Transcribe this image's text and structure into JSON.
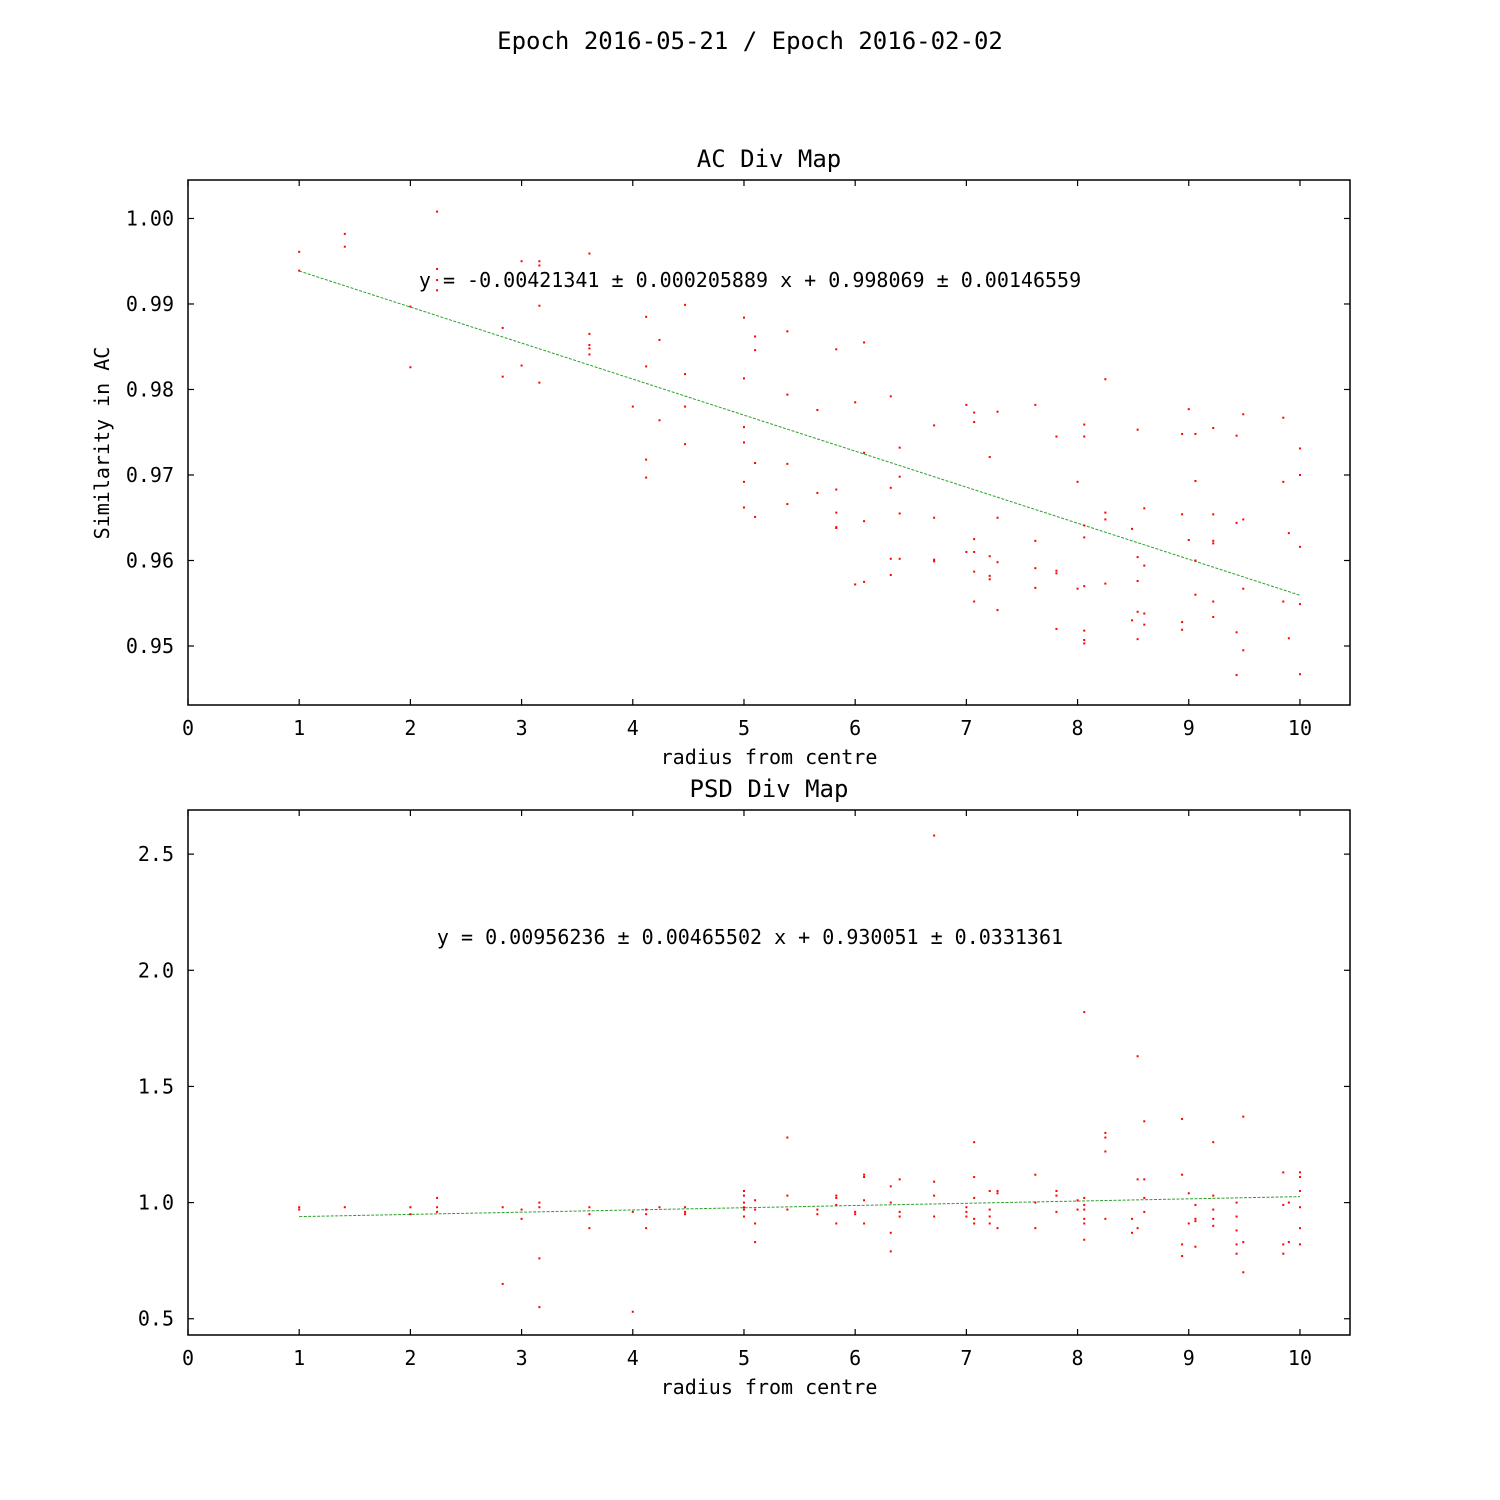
{
  "figure": {
    "suptitle": "Epoch 2016-05-21 / Epoch 2016-02-02"
  },
  "colors": {
    "points": "#ff0000",
    "fit": "#2ca02c",
    "axes": "#000000"
  },
  "chart_data": [
    {
      "type": "scatter",
      "title": "AC Div Map",
      "xlabel": "radius from centre",
      "ylabel": "Similarity in AC",
      "xlim": [
        0,
        10.45
      ],
      "ylim": [
        0.9431,
        1.0045
      ],
      "xticks": [
        0,
        1,
        2,
        3,
        4,
        5,
        6,
        7,
        8,
        9,
        10
      ],
      "yticks": [
        0.95,
        0.96,
        0.97,
        0.98,
        0.99,
        1.0
      ],
      "ytick_labels": [
        "0.95",
        "0.96",
        "0.97",
        "0.98",
        "0.99",
        "1.00"
      ],
      "grid": false,
      "fit": {
        "equation": "y = -0.00421341 ± 0.000205889 x + 0.998069 ± 0.00146559",
        "slope": -0.00421341,
        "intercept": 0.998069,
        "x_range": [
          1,
          10
        ],
        "style": "dashed"
      },
      "x": [
        1,
        1,
        1.41,
        1.41,
        2,
        2,
        2.24,
        2.24,
        2.24,
        2.24,
        2.83,
        2.83,
        3,
        3,
        3.16,
        3.16,
        3.16,
        3.16,
        3.61,
        3.61,
        3.61,
        3.61,
        3.61,
        4,
        4.12,
        4.12,
        4.12,
        4.12,
        4.24,
        4.24,
        4.47,
        4.47,
        4.47,
        4.47,
        5,
        5,
        5,
        5,
        5,
        5,
        5.1,
        5.1,
        5.1,
        5.1,
        5.39,
        5.39,
        5.39,
        5.39,
        5.66,
        5.66,
        5.83,
        5.83,
        5.83,
        5.83,
        5.83,
        6,
        6,
        6.08,
        6.08,
        6.08,
        6.08,
        6.32,
        6.32,
        6.32,
        6.32,
        6.4,
        6.4,
        6.4,
        6.4,
        6.71,
        6.71,
        6.71,
        6.71,
        7,
        7,
        7.07,
        7.07,
        7.07,
        7.07,
        7.07,
        7.07,
        7.21,
        7.21,
        7.21,
        7.21,
        7.28,
        7.28,
        7.28,
        7.28,
        7.62,
        7.62,
        7.62,
        7.62,
        7.81,
        7.81,
        7.81,
        7.81,
        8,
        8,
        8.06,
        8.06,
        8.06,
        8.06,
        8.06,
        8.06,
        8.06,
        8.06,
        8.25,
        8.25,
        8.25,
        8.25,
        8.49,
        8.49,
        8.54,
        8.54,
        8.54,
        8.54,
        8.54,
        8.6,
        8.6,
        8.6,
        8.6,
        8.94,
        8.94,
        8.94,
        8.94,
        9,
        9,
        9.06,
        9.06,
        9.06,
        9.06,
        9.22,
        9.22,
        9.22,
        9.22,
        9.22,
        9.22,
        9.43,
        9.43,
        9.43,
        9.43,
        9.49,
        9.49,
        9.49,
        9.49,
        9.85,
        9.85,
        9.85,
        9.9,
        9.9,
        10,
        10,
        10,
        10,
        10
      ],
      "y": [
        0.9961,
        0.9939,
        0.9982,
        0.9967,
        0.9897,
        0.9826,
        1.0008,
        0.9941,
        0.9928,
        0.9916,
        0.9872,
        0.9815,
        0.995,
        0.9828,
        0.995,
        0.9945,
        0.9898,
        0.9808,
        0.9959,
        0.9865,
        0.9852,
        0.9848,
        0.9841,
        0.978,
        0.9885,
        0.9827,
        0.9718,
        0.9697,
        0.9858,
        0.9764,
        0.9899,
        0.9818,
        0.978,
        0.9736,
        0.9884,
        0.9813,
        0.9756,
        0.9738,
        0.9692,
        0.9662,
        0.9862,
        0.9846,
        0.9714,
        0.9651,
        0.9868,
        0.9794,
        0.9713,
        0.9666,
        0.9776,
        0.9679,
        0.9847,
        0.9683,
        0.9656,
        0.9638,
        0.9639,
        0.9785,
        0.9572,
        0.9855,
        0.9726,
        0.9646,
        0.9575,
        0.9792,
        0.9685,
        0.9602,
        0.9583,
        0.9732,
        0.9698,
        0.9655,
        0.9602,
        0.9758,
        0.965,
        0.9601,
        0.9599,
        0.9782,
        0.961,
        0.9773,
        0.9762,
        0.9625,
        0.961,
        0.9587,
        0.9552,
        0.9721,
        0.9605,
        0.9582,
        0.9578,
        0.9774,
        0.965,
        0.9598,
        0.9542,
        0.9782,
        0.9623,
        0.9591,
        0.9568,
        0.9745,
        0.9588,
        0.9585,
        0.952,
        0.9692,
        0.9567,
        0.9759,
        0.9745,
        0.9641,
        0.9627,
        0.957,
        0.9518,
        0.9507,
        0.9503,
        0.9812,
        0.9656,
        0.9648,
        0.9573,
        0.9637,
        0.953,
        0.9753,
        0.9604,
        0.9576,
        0.954,
        0.9508,
        0.9661,
        0.9594,
        0.9538,
        0.9525,
        0.9748,
        0.9654,
        0.9528,
        0.9519,
        0.9777,
        0.9624,
        0.9748,
        0.9693,
        0.96,
        0.956,
        0.9755,
        0.9654,
        0.9623,
        0.962,
        0.9552,
        0.9534,
        0.9746,
        0.9644,
        0.9516,
        0.9466,
        0.9771,
        0.9648,
        0.9567,
        0.9495,
        0.9767,
        0.9692,
        0.9552,
        0.9632,
        0.9509,
        0.9731,
        0.97,
        0.9616,
        0.9549,
        0.9467
      ]
    },
    {
      "type": "scatter",
      "title": "PSD Div Map",
      "xlabel": "radius from centre",
      "ylabel": "",
      "xlim": [
        0,
        10.45
      ],
      "ylim": [
        0.43,
        2.69
      ],
      "xticks": [
        0,
        1,
        2,
        3,
        4,
        5,
        6,
        7,
        8,
        9,
        10
      ],
      "yticks": [
        0.5,
        1.0,
        1.5,
        2.0,
        2.5
      ],
      "ytick_labels": [
        "0.5",
        "1.0",
        "1.5",
        "2.0",
        "2.5"
      ],
      "grid": false,
      "fit": {
        "equation": "y = 0.00956236 ± 0.00465502 x + 0.930051 ± 0.0331361",
        "slope": 0.00956236,
        "intercept": 0.930051,
        "x_range": [
          1,
          10
        ],
        "style": "dashed"
      },
      "x": [
        1,
        1,
        1.41,
        2,
        2,
        2.24,
        2.24,
        2.24,
        2.83,
        2.83,
        3,
        3,
        3.16,
        3.16,
        3.16,
        3.16,
        3.61,
        3.61,
        3.61,
        4,
        4,
        4.12,
        4.12,
        4.12,
        4.24,
        4.47,
        4.47,
        4.47,
        5,
        5,
        5,
        5,
        5,
        5,
        5.1,
        5.1,
        5.1,
        5.1,
        5.39,
        5.39,
        5.39,
        5.66,
        5.66,
        5.83,
        5.83,
        5.83,
        5.83,
        6,
        6,
        6.08,
        6.08,
        6.08,
        6.08,
        6.32,
        6.32,
        6.32,
        6.32,
        6.4,
        6.4,
        6.4,
        6.71,
        6.71,
        6.71,
        6.71,
        7,
        7,
        7,
        7.07,
        7.07,
        7.07,
        7.07,
        7.07,
        7.21,
        7.21,
        7.21,
        7.21,
        7.28,
        7.28,
        7.28,
        7.62,
        7.62,
        7.62,
        7.81,
        7.81,
        7.81,
        8,
        8,
        8.06,
        8.06,
        8.06,
        8.06,
        8.06,
        8.06,
        8.06,
        8.25,
        8.25,
        8.25,
        8.25,
        8.49,
        8.49,
        8.54,
        8.54,
        8.54,
        8.6,
        8.6,
        8.6,
        8.6,
        8.94,
        8.94,
        8.94,
        8.94,
        9,
        9,
        9.06,
        9.06,
        9.06,
        9.06,
        9.22,
        9.22,
        9.22,
        9.22,
        9.22,
        9.43,
        9.43,
        9.43,
        9.43,
        9.43,
        9.49,
        9.49,
        9.49,
        9.85,
        9.85,
        9.85,
        9.85,
        9.9,
        9.9,
        10,
        10,
        10,
        10,
        10,
        10
      ],
      "y": [
        0.98,
        0.97,
        0.98,
        0.98,
        0.95,
        1.02,
        0.98,
        0.96,
        0.98,
        0.65,
        0.97,
        0.93,
        1.0,
        0.98,
        0.76,
        0.55,
        0.98,
        0.95,
        0.89,
        0.96,
        0.53,
        0.97,
        0.95,
        0.89,
        0.98,
        0.98,
        0.96,
        0.95,
        1.05,
        1.03,
        1.0,
        0.98,
        0.97,
        0.94,
        1.01,
        0.97,
        0.91,
        0.83,
        1.28,
        1.03,
        0.97,
        0.97,
        0.95,
        1.03,
        1.02,
        0.99,
        0.91,
        0.96,
        0.95,
        1.12,
        1.11,
        1.01,
        0.91,
        1.07,
        1.0,
        0.87,
        0.79,
        1.1,
        0.96,
        0.94,
        2.58,
        1.09,
        1.03,
        0.94,
        0.98,
        0.96,
        0.94,
        1.26,
        1.11,
        1.02,
        0.93,
        0.91,
        1.05,
        0.97,
        0.94,
        0.91,
        1.05,
        1.04,
        0.89,
        1.12,
        1.0,
        0.89,
        1.05,
        1.03,
        0.96,
        1.01,
        0.97,
        1.82,
        1.02,
        0.99,
        0.97,
        0.93,
        0.91,
        0.84,
        1.3,
        1.28,
        1.22,
        0.93,
        0.93,
        0.87,
        1.63,
        1.1,
        0.89,
        1.35,
        1.1,
        1.02,
        0.96,
        1.36,
        1.12,
        0.82,
        0.77,
        1.04,
        0.91,
        0.99,
        0.93,
        0.92,
        0.81,
        1.26,
        1.03,
        0.97,
        0.93,
        0.9,
        1.0,
        0.94,
        0.88,
        0.82,
        0.78,
        1.37,
        0.83,
        0.7,
        1.13,
        0.99,
        0.82,
        0.78,
        1.0,
        0.83,
        1.13,
        1.11,
        1.05,
        0.98,
        0.89,
        0.82
      ]
    }
  ]
}
